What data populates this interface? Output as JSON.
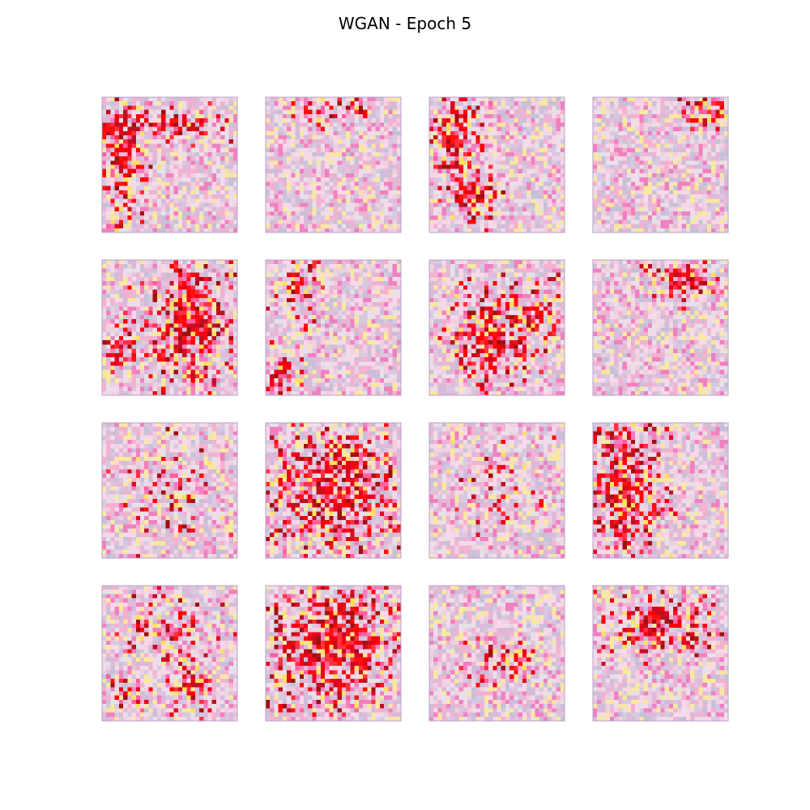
{
  "title": "WGAN - Epoch 5"
}
